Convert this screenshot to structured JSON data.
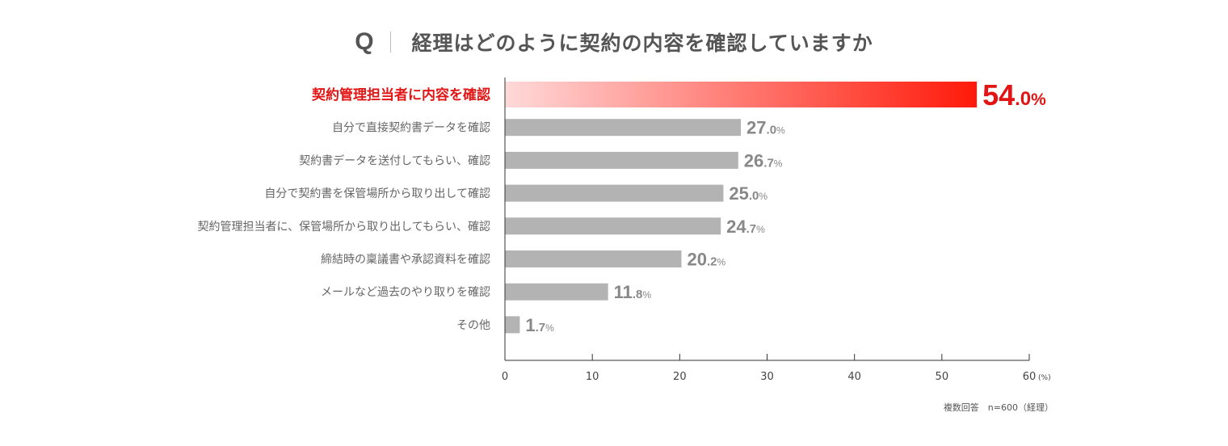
{
  "title": {
    "q_mark": "Q",
    "question": "経理はどのように契約の内容を確認していますか"
  },
  "chart_data": {
    "type": "bar",
    "orientation": "horizontal",
    "title": "経理はどのように契約の内容を確認していますか",
    "categories": [
      "契約管理担当者に内容を確認",
      "自分で直接契約書データを確認",
      "契約書データを送付してもらい、確認",
      "自分で契約書を保管場所から取り出して確認",
      "契約管理担当者に、保管場所から取り出してもらい、確認",
      "締結時の稟議書や承認資料を確認",
      "メールなど過去のやり取りを確認",
      "その他"
    ],
    "values": [
      54.0,
      27.0,
      26.7,
      25.0,
      24.7,
      20.2,
      11.8,
      1.7
    ],
    "value_labels": [
      {
        "main": "54",
        "dec": ".0",
        "pct": "%"
      },
      {
        "main": "27",
        "dec": ".0",
        "pct": "%"
      },
      {
        "main": "26",
        "dec": ".7",
        "pct": "%"
      },
      {
        "main": "25",
        "dec": ".0",
        "pct": "%"
      },
      {
        "main": "24",
        "dec": ".7",
        "pct": "%"
      },
      {
        "main": "20",
        "dec": ".2",
        "pct": "%"
      },
      {
        "main": "11",
        "dec": ".8",
        "pct": "%"
      },
      {
        "main": "1",
        "dec": ".7",
        "pct": "%"
      }
    ],
    "highlight_index": 0,
    "xlim": [
      0,
      60
    ],
    "xticks": [
      0,
      10,
      20,
      30,
      40,
      50,
      60
    ],
    "x_unit": "(%)",
    "colors": {
      "highlight_start": "#ffd9d9",
      "highlight_end": "#ff1a0a",
      "highlight_text": "#e21515",
      "bar": "#b3b3b3",
      "value_text": "#888888"
    }
  },
  "footnote": "複数回答　n=600（経理）"
}
